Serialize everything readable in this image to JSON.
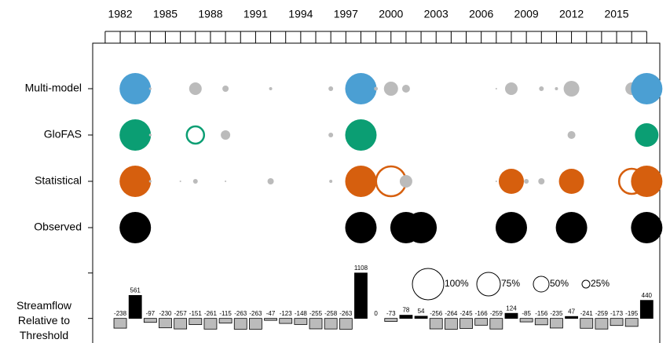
{
  "chart_data": {
    "type": "bubble",
    "xlim": [
      1980.17,
      2017.87
    ],
    "xticks": [
      1982,
      1985,
      1988,
      1991,
      1994,
      1997,
      2000,
      2003,
      2006,
      2009,
      2012,
      2015
    ],
    "xminorticks": [
      1981,
      1982,
      1983,
      1984,
      1985,
      1986,
      1987,
      1988,
      1989,
      1990,
      1991,
      1992,
      1993,
      1994,
      1995,
      1996,
      1997,
      1998,
      1999,
      2000,
      2001,
      2002,
      2003,
      2004,
      2005,
      2006,
      2007,
      2008,
      2009,
      2010,
      2011,
      2012,
      2013,
      2014,
      2015,
      2016,
      2017
    ],
    "other_color": "#bbbbbb",
    "series": [
      {
        "name": "Multi-model",
        "color": "#4b9fd3",
        "x": [
          1983,
          1984,
          1987,
          1989,
          1992,
          1996,
          1998,
          1999,
          2000,
          2001,
          2007,
          2008,
          2010,
          2011,
          2012,
          2016,
          2017
        ],
        "values": [
          100,
          8,
          40,
          20,
          10,
          15,
          100,
          12,
          45,
          25,
          5,
          40,
          15,
          10,
          50,
          40,
          100
        ],
        "triggered": [
          true,
          false,
          false,
          false,
          false,
          false,
          true,
          false,
          false,
          false,
          false,
          false,
          false,
          false,
          false,
          false,
          true
        ]
      },
      {
        "name": "GloFAS",
        "color": "#0b9e73",
        "x": [
          1983,
          1984,
          1987,
          1989,
          1996,
          1998,
          2012,
          2017
        ],
        "values": [
          100,
          8,
          55,
          30,
          15,
          100,
          25,
          75
        ],
        "triggered": [
          true,
          false,
          true,
          false,
          false,
          true,
          false,
          true
        ]
      },
      {
        "name": "Statistical",
        "color": "#d65f0e",
        "x": [
          1983,
          1984,
          1986,
          1987,
          1989,
          1992,
          1996,
          1998,
          2000,
          2001,
          2007,
          2008,
          2009,
          2010,
          2012,
          2016,
          2017
        ],
        "values": [
          100,
          8,
          5,
          15,
          5,
          20,
          10,
          100,
          95,
          40,
          5,
          80,
          15,
          20,
          80,
          80,
          100
        ],
        "triggered": [
          true,
          false,
          false,
          false,
          false,
          false,
          false,
          true,
          true,
          false,
          false,
          true,
          false,
          false,
          true,
          true,
          true
        ]
      },
      {
        "name": "Observed",
        "color": "#000000",
        "x": [
          1983,
          1998,
          2001,
          2002,
          2008,
          2012,
          2017
        ],
        "values": [
          100,
          100,
          100,
          100,
          100,
          100,
          100
        ],
        "triggered": [
          true,
          true,
          true,
          true,
          true,
          true,
          true
        ]
      }
    ],
    "size_legend": [
      {
        "value": 100,
        "label": "100%"
      },
      {
        "value": 75,
        "label": "75%"
      },
      {
        "value": 50,
        "label": "50%"
      },
      {
        "value": 25,
        "label": "25%"
      }
    ],
    "bars": {
      "label": "Streamflow Relative to Threshold",
      "x_start": 1982,
      "ylim": [
        -600,
        1200
      ],
      "pos_color": "#000000",
      "neg_color": "#bbbbbb",
      "values": [
        -238,
        561,
        -97,
        -230,
        -257,
        -151,
        -261,
        -115,
        -263,
        -263,
        -47,
        -123,
        -148,
        -255,
        -258,
        -263,
        1108,
        0,
        -73,
        78,
        54,
        -256,
        -264,
        -245,
        -166,
        -259,
        124,
        -85,
        -156,
        -235,
        47,
        -241,
        -259,
        -173,
        -195,
        440
      ]
    }
  }
}
